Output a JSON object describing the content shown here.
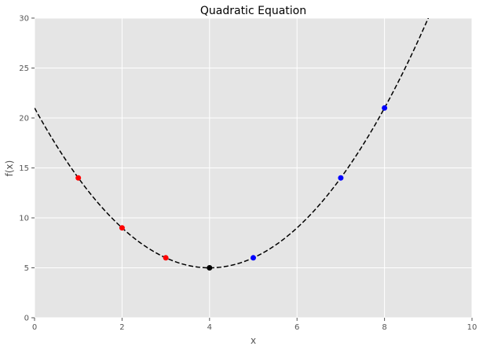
{
  "chart_data": {
    "type": "line",
    "title": "Quadratic Equation",
    "xlabel": "x",
    "ylabel": "f(x)",
    "xlim": [
      0,
      10
    ],
    "ylim": [
      0,
      30
    ],
    "xticks": [
      0,
      2,
      4,
      6,
      8,
      10
    ],
    "yticks": [
      0,
      5,
      10,
      15,
      20,
      25,
      30
    ],
    "grid": true,
    "background_color": "#e5e5e5",
    "curve": {
      "equation": "f(x) = (x - 4)^2 + 5",
      "color": "#000000",
      "style": "dashed"
    },
    "series": [
      {
        "color": "#ff0000",
        "x": [
          1,
          2,
          3
        ],
        "y": [
          14,
          9,
          6
        ]
      },
      {
        "color": "#000000",
        "x": [
          4
        ],
        "y": [
          5
        ]
      },
      {
        "color": "#0000ff",
        "x": [
          5,
          7,
          8
        ],
        "y": [
          6,
          14,
          21
        ]
      }
    ]
  }
}
